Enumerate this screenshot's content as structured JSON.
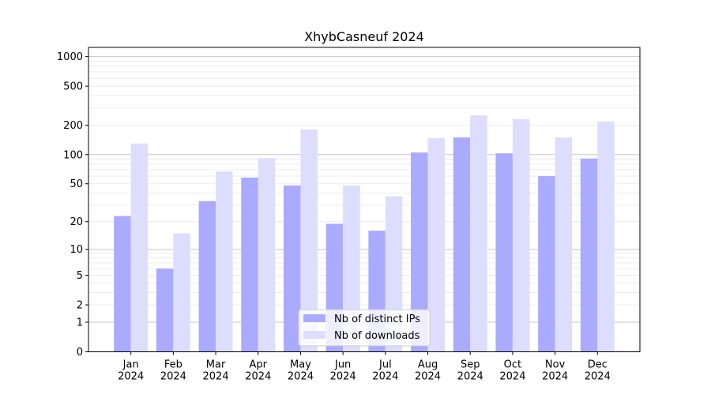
{
  "chart_data": {
    "type": "bar",
    "title": "XhybCasneuf 2024",
    "xlabel": "",
    "ylabel": "",
    "yscale": "symlog (log10(1+y))",
    "ylim": [
      0,
      1240
    ],
    "yticks": [
      0,
      1,
      2,
      5,
      10,
      20,
      50,
      100,
      200,
      500,
      1000
    ],
    "categories": [
      "Jan\n2024",
      "Feb\n2024",
      "Mar\n2024",
      "Apr\n2024",
      "May\n2024",
      "Jun\n2024",
      "Jul\n2024",
      "Aug\n2024",
      "Sep\n2024",
      "Oct\n2024",
      "Nov\n2024",
      "Dec\n2024"
    ],
    "series": [
      {
        "name": "Nb of distinct IPs",
        "color": "#aaaaff",
        "values": [
          23,
          6,
          33,
          58,
          48,
          19,
          16,
          105,
          150,
          103,
          60,
          91
        ]
      },
      {
        "name": "Nb of downloads",
        "color": "#ddddff",
        "values": [
          130,
          15,
          67,
          92,
          181,
          48,
          37,
          147,
          252,
          230,
          150,
          218
        ]
      }
    ],
    "grid": true,
    "legend": "lower center"
  }
}
